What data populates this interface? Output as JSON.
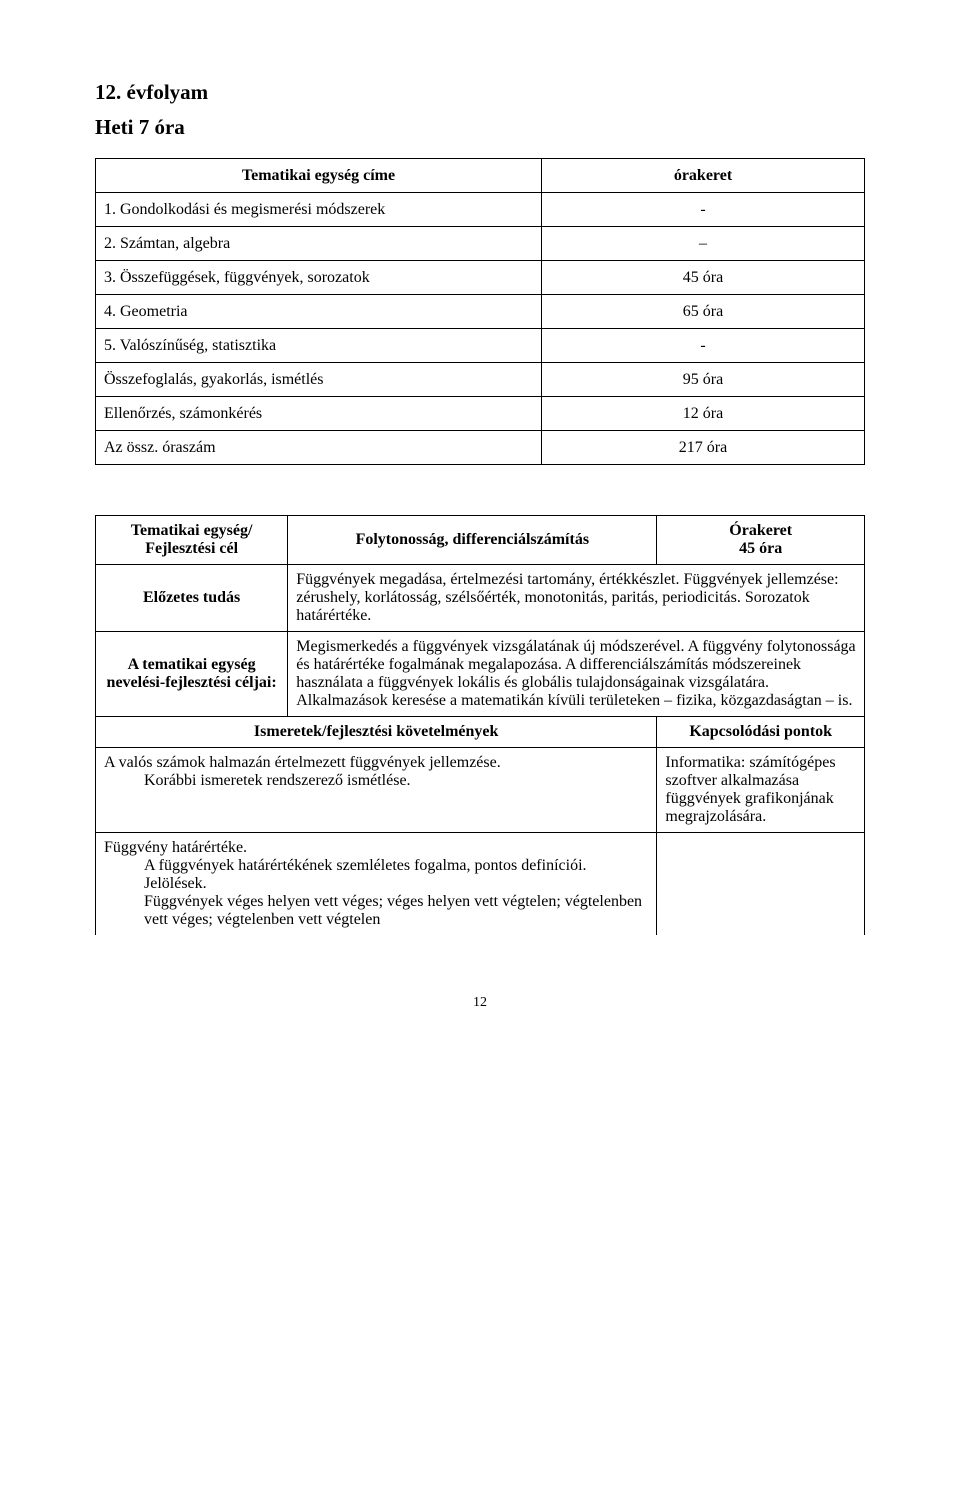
{
  "header": {
    "grade": "12. évfolyam",
    "weekly": "Heti 7 óra"
  },
  "hours_table": {
    "col_title": "Tematikai egység címe",
    "col_hours": "órakeret",
    "rows": [
      {
        "label": "1. Gondolkodási és megismerési módszerek",
        "hours": "-"
      },
      {
        "label": "2. Számtan, algebra",
        "hours": "–"
      },
      {
        "label": "3. Összefüggések, függvények, sorozatok",
        "hours": "45 óra"
      },
      {
        "label": "4. Geometria",
        "hours": "65 óra"
      },
      {
        "label": "5. Valószínűség, statisztika",
        "hours": "-"
      },
      {
        "label": "Összefoglalás, gyakorlás, ismétlés",
        "hours": "95 óra"
      },
      {
        "label": "Ellenőrzés, számonkérés",
        "hours": "12 óra"
      },
      {
        "label": "Az össz. óraszám",
        "hours": "217 óra"
      }
    ]
  },
  "unit": {
    "label_unit": "Tematikai egység/\nFejlesztési cél",
    "title": "Folytonosság, differenciálszámítás",
    "orakeret_label": "Órakeret",
    "orakeret_value": "45 óra",
    "label_prior": "Előzetes tudás",
    "prior_text": "Függvények megadása, értelmezési tartomány, értékkészlet. Függvények jellemzése: zérushely, korlátosság, szélsőérték, monotonitás, paritás, periodicitás. Sorozatok határértéke.",
    "label_goals": "A tematikai egység nevelési-fejlesztési céljai:",
    "goals_text": "Megismerkedés a függvények vizsgálatának új módszerével. A függvény folytonossága és határértéke fogalmának megalapozása. A differenciálszámítás módszereinek használata a függvények lokális és globális tulajdonságainak vizsgálatára. Alkalmazások keresése a matematikán kívüli területeken – fizika, közgazdaságtan – is.",
    "ism_header": "Ismeretek/fejlesztési követelmények",
    "kapcs_header": "Kapcsolódási pontok",
    "row1_line1": "A valós számok halmazán értelmezett függvények jellemzése.",
    "row1_line2": "Korábbi ismeretek rendszerező ismétlése.",
    "row1_kapcs": "Informatika: számítógépes szoftver alkalmazása függvények grafikonjának megrajzolására.",
    "row2_line1": "Függvény határértéke.",
    "row2_line2": "A függvények határértékének szemléletes fogalma, pontos definíciói. Jelölések.",
    "row2_line3": "Függvények véges helyen vett véges; véges helyen vett végtelen; végtelenben vett véges; végtelenben vett végtelen"
  },
  "pagenum": "12"
}
